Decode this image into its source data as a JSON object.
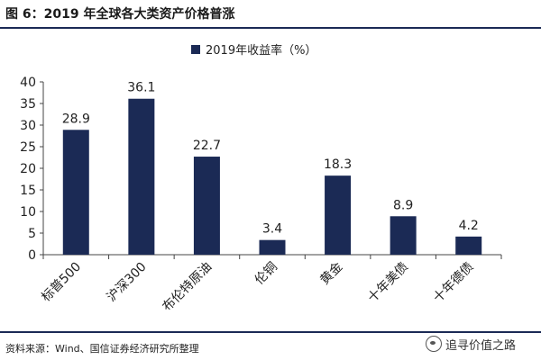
{
  "header": {
    "title": "图 6：2019 年全球各大类资产价格普涨"
  },
  "footer": {
    "source": "资料来源：Wind、国信证券经济研究所整理",
    "watermark": "追寻价值之路",
    "watermark_icon": "wechat-icon"
  },
  "chart_data": {
    "type": "bar",
    "categories": [
      "标普500",
      "沪深300",
      "布伦特原油",
      "伦铜",
      "黄金",
      "十年美债",
      "十年德债"
    ],
    "series": [
      {
        "name": "2019年收益率（%）",
        "values": [
          28.9,
          36.1,
          22.7,
          3.4,
          18.3,
          8.9,
          4.2
        ],
        "color": "#1b2a55"
      }
    ],
    "data_labels": [
      "28.9",
      "36.1",
      "22.7",
      "3.4",
      "18.3",
      "8.9",
      "4.2"
    ],
    "yticks": [
      0,
      5,
      10,
      15,
      20,
      25,
      30,
      35,
      40
    ],
    "ylim": [
      0,
      40
    ],
    "legend_position": "top-center",
    "grid": false
  }
}
